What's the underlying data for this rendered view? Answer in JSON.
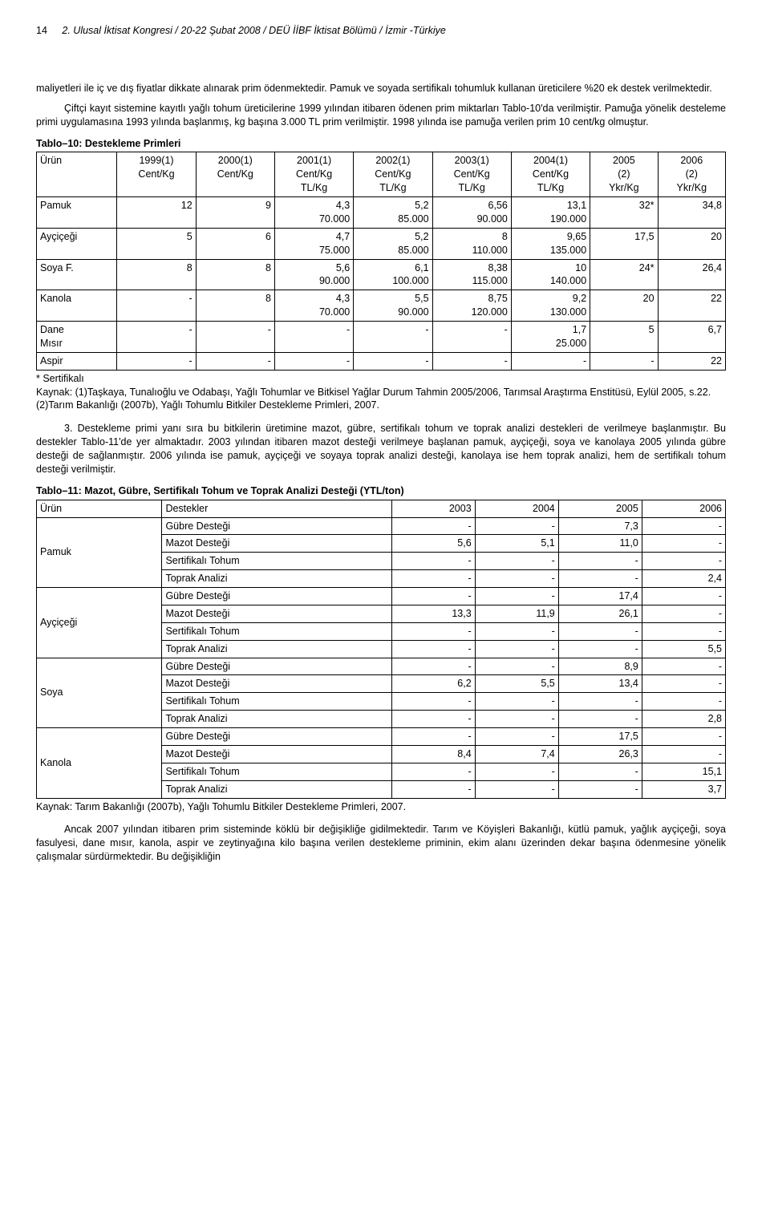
{
  "pageNumber": "14",
  "headerTitle": "2. Ulusal İktisat Kongresi / 20-22 Şubat 2008 / DEÜ İİBF İktisat Bölümü / İzmir -Türkiye",
  "para1": "maliyetleri ile iç ve dış fiyatlar dikkate alınarak prim ödenmektedir. Pamuk ve soyada sertifikalı tohumluk kullanan üreticilere %20 ek destek verilmektedir.",
  "para2": "Çiftçi kayıt sistemine kayıtlı yağlı tohum üreticilerine 1999 yılından itibaren ödenen prim miktarları Tablo-10'da verilmiştir. Pamuğa yönelik desteleme primi uygulamasına 1993 yılında başlanmış, kg başına 3.000 TL prim verilmiştir. 1998 yılında ise pamuğa verilen prim 10 cent/kg olmuştur.",
  "table10": {
    "title": "Tablo–10: Destekleme Primleri",
    "headers": [
      "Ürün",
      "1999(1)\nCent/Kg",
      "2000(1)\nCent/Kg",
      "2001(1)\nCent/Kg\nTL/Kg",
      "2002(1)\nCent/Kg\nTL/Kg",
      "2003(1)\nCent/Kg\nTL/Kg",
      "2004(1)\nCent/Kg\nTL/Kg",
      "2005\n(2)\nYkr/Kg",
      "2006\n(2)\nYkr/Kg"
    ],
    "rows": [
      [
        "Pamuk",
        "12",
        "9",
        "4,3\n70.000",
        "5,2\n85.000",
        "6,56\n90.000",
        "13,1\n190.000",
        "32*",
        "34,8"
      ],
      [
        "Ayçiçeği",
        "5",
        "6",
        "4,7\n75.000",
        "5,2\n85.000",
        "8\n110.000",
        "9,65\n135.000",
        "17,5",
        "20"
      ],
      [
        "Soya F.",
        "8",
        "8",
        "5,6\n90.000",
        "6,1\n100.000",
        "8,38\n115.000",
        "10\n140.000",
        "24*",
        "26,4"
      ],
      [
        "Kanola",
        "-",
        "8",
        "4,3\n70.000",
        "5,5\n90.000",
        "8,75\n120.000",
        "9,2\n130.000",
        "20",
        "22"
      ],
      [
        "Dane\nMısır",
        "-",
        "-",
        "-",
        "-",
        "-",
        "1,7\n25.000",
        "5",
        "6,7"
      ],
      [
        "Aspir",
        "-",
        "-",
        "-",
        "-",
        "-",
        "-",
        "-",
        "22"
      ]
    ],
    "note": "* Sertifikalı",
    "source": "Kaynak: (1)Taşkaya, Tunalıoğlu ve Odabaşı, Yağlı Tohumlar ve Bitkisel Yağlar Durum Tahmin 2005/2006, Tarımsal Araştırma Enstitüsü, Eylül 2005, s.22.\n(2)Tarım Bakanlığı (2007b), Yağlı Tohumlu Bitkiler Destekleme Primleri, 2007."
  },
  "para3": "3. Destekleme primi yanı sıra bu bitkilerin üretimine mazot, gübre, sertifikalı tohum ve toprak analizi destekleri de verilmeye başlanmıştır. Bu destekler Tablo-11'de yer almaktadır. 2003 yılından itibaren mazot desteği verilmeye başlanan pamuk, ayçiçeği, soya ve kanolaya 2005 yılında gübre desteği de sağlanmıştır. 2006 yılında ise pamuk, ayçiçeği ve soyaya toprak analizi desteği, kanolaya ise hem toprak analizi, hem de sertifikalı tohum desteği verilmiştir.",
  "table11": {
    "title": "Tablo–11: Mazot, Gübre, Sertifikalı Tohum ve Toprak Analizi Desteği (YTL/ton)",
    "head": [
      "Ürün",
      "Destekler",
      "2003",
      "2004",
      "2005",
      "2006"
    ],
    "groups": [
      {
        "name": "Pamuk",
        "rows": [
          [
            "Gübre Desteği",
            "-",
            "-",
            "7,3",
            "-"
          ],
          [
            "Mazot Desteği",
            "5,6",
            "5,1",
            "11,0",
            "-"
          ],
          [
            "Sertifikalı Tohum",
            "-",
            "-",
            "-",
            "-"
          ],
          [
            "Toprak Analizi",
            "-",
            "-",
            "-",
            "2,4"
          ]
        ]
      },
      {
        "name": "Ayçiçeği",
        "rows": [
          [
            "Gübre Desteği",
            "-",
            "-",
            "17,4",
            "-"
          ],
          [
            "Mazot Desteği",
            "13,3",
            "11,9",
            "26,1",
            "-"
          ],
          [
            "Sertifikalı Tohum",
            "-",
            "-",
            "-",
            "-"
          ],
          [
            "Toprak Analizi",
            "-",
            "-",
            "-",
            "5,5"
          ]
        ]
      },
      {
        "name": "Soya",
        "rows": [
          [
            "Gübre Desteği",
            "-",
            "-",
            "8,9",
            "-"
          ],
          [
            "Mazot Desteği",
            "6,2",
            "5,5",
            "13,4",
            "-"
          ],
          [
            "Sertifikalı Tohum",
            "-",
            "-",
            "-",
            "-"
          ],
          [
            "Toprak Analizi",
            "-",
            "-",
            "-",
            "2,8"
          ]
        ]
      },
      {
        "name": "Kanola",
        "rows": [
          [
            "Gübre Desteği",
            "-",
            "-",
            "17,5",
            "-"
          ],
          [
            "Mazot Desteği",
            "8,4",
            "7,4",
            "26,3",
            "-"
          ],
          [
            "Sertifikalı Tohum",
            "-",
            "-",
            "-",
            "15,1"
          ],
          [
            "Toprak Analizi",
            "-",
            "-",
            "-",
            "3,7"
          ]
        ]
      }
    ],
    "source": "Kaynak: Tarım Bakanlığı (2007b), Yağlı Tohumlu Bitkiler Destekleme Primleri, 2007."
  },
  "para4": "Ancak 2007 yılından itibaren prim sisteminde köklü bir değişikliğe gidilmektedir. Tarım ve Köyişleri Bakanlığı, kütlü pamuk, yağlık ayçiçeği, soya fasulyesi, dane mısır, kanola, aspir ve zeytinyağına kilo başına verilen destekleme priminin, ekim alanı üzerinden dekar başına ödenmesine yönelik çalışmalar sürdürmektedir. Bu değişikliğin"
}
